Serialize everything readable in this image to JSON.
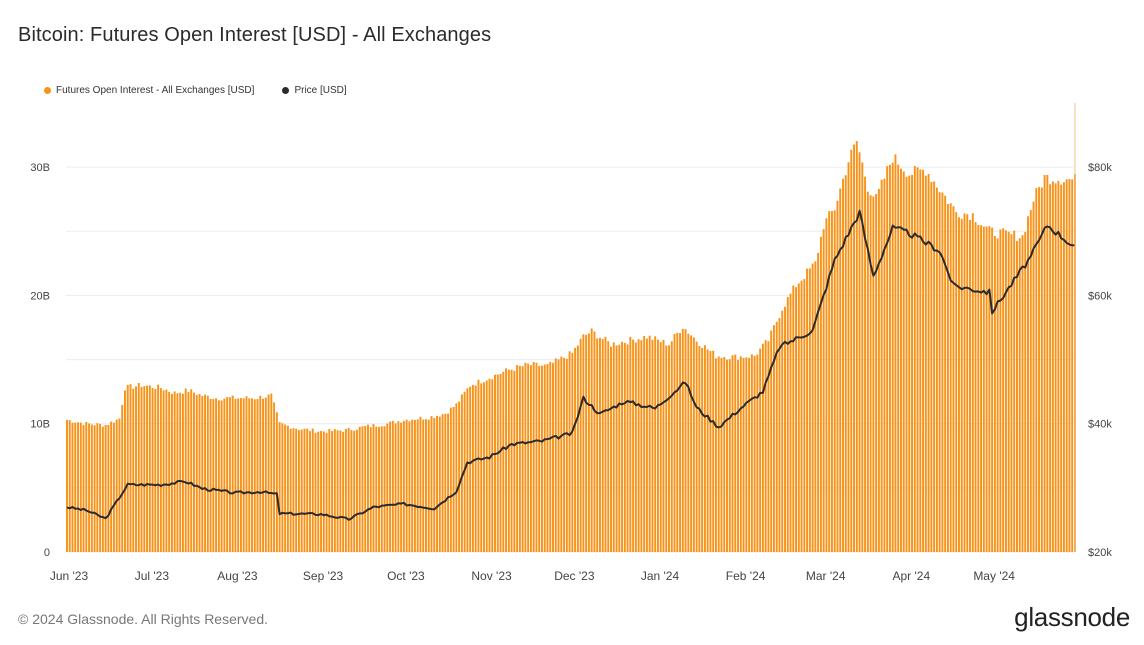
{
  "title": "Bitcoin: Futures Open Interest [USD] - All Exchanges",
  "footer": "© 2024 Glassnode. All Rights Reserved.",
  "brand": "glassnode",
  "colors": {
    "bar": "#f7931a",
    "price": "#2b2b2b",
    "grid": "#ececec",
    "axis": "#444444"
  },
  "chart_data": {
    "type": "bar",
    "x_range": [
      "2023-06-01",
      "2024-05-31"
    ],
    "x_ticks": [
      "Jun '23",
      "Jul '23",
      "Aug '23",
      "Sep '23",
      "Oct '23",
      "Nov '23",
      "Dec '23",
      "Jan '24",
      "Feb '24",
      "Mar '24",
      "Apr '24",
      "May '24"
    ],
    "y_left_range": [
      0,
      35000000000
    ],
    "y_left_ticks": [
      "0",
      "10B",
      "20B",
      "30B"
    ],
    "y_right_range": [
      20000,
      90000
    ],
    "y_right_ticks": [
      "$20k",
      "$40k",
      "$60k",
      "$80k"
    ],
    "grid": true,
    "legend_position": "top-left",
    "series": [
      {
        "name": "Futures Open Interest - All Exchanges [USD]",
        "type": "bar",
        "axis": "left",
        "unit": "USD (B)",
        "points": [
          [
            "2023-06-01",
            10.3
          ],
          [
            "2023-06-08",
            10.0
          ],
          [
            "2023-06-15",
            9.9
          ],
          [
            "2023-06-20",
            10.4
          ],
          [
            "2023-06-22",
            12.8
          ],
          [
            "2023-06-28",
            13.0
          ],
          [
            "2023-07-05",
            12.8
          ],
          [
            "2023-07-10",
            12.4
          ],
          [
            "2023-07-15",
            12.6
          ],
          [
            "2023-07-20",
            12.2
          ],
          [
            "2023-07-25",
            12.0
          ],
          [
            "2023-08-01",
            12.0
          ],
          [
            "2023-08-08",
            12.0
          ],
          [
            "2023-08-14",
            12.2
          ],
          [
            "2023-08-17",
            10.0
          ],
          [
            "2023-08-24",
            9.6
          ],
          [
            "2023-09-01",
            9.4
          ],
          [
            "2023-09-10",
            9.5
          ],
          [
            "2023-09-18",
            9.8
          ],
          [
            "2023-09-25",
            10.0
          ],
          [
            "2023-10-01",
            10.3
          ],
          [
            "2023-10-10",
            10.5
          ],
          [
            "2023-10-16",
            10.8
          ],
          [
            "2023-10-20",
            11.5
          ],
          [
            "2023-10-25",
            13.0
          ],
          [
            "2023-11-01",
            13.6
          ],
          [
            "2023-11-08",
            14.2
          ],
          [
            "2023-11-15",
            14.6
          ],
          [
            "2023-11-22",
            14.5
          ],
          [
            "2023-12-01",
            15.5
          ],
          [
            "2023-12-05",
            16.8
          ],
          [
            "2023-12-08",
            17.2
          ],
          [
            "2023-12-15",
            16.2
          ],
          [
            "2023-12-22",
            16.5
          ],
          [
            "2023-12-28",
            16.8
          ],
          [
            "2024-01-05",
            16.2
          ],
          [
            "2024-01-10",
            17.6
          ],
          [
            "2024-01-15",
            16.5
          ],
          [
            "2024-01-22",
            15.3
          ],
          [
            "2024-01-29",
            15.2
          ],
          [
            "2024-02-05",
            15.3
          ],
          [
            "2024-02-10",
            16.5
          ],
          [
            "2024-02-15",
            19.0
          ],
          [
            "2024-02-20",
            20.8
          ],
          [
            "2024-02-27",
            22.5
          ],
          [
            "2024-03-01",
            25.5
          ],
          [
            "2024-03-05",
            26.8
          ],
          [
            "2024-03-10",
            30.5
          ],
          [
            "2024-03-13",
            32.0
          ],
          [
            "2024-03-17",
            28.5
          ],
          [
            "2024-03-20",
            27.5
          ],
          [
            "2024-03-26",
            30.8
          ],
          [
            "2024-04-01",
            29.5
          ],
          [
            "2024-04-07",
            29.8
          ],
          [
            "2024-04-13",
            28.0
          ],
          [
            "2024-04-18",
            26.5
          ],
          [
            "2024-04-24",
            26.3
          ],
          [
            "2024-04-30",
            25.0
          ],
          [
            "2024-05-05",
            24.8
          ],
          [
            "2024-05-12",
            24.6
          ],
          [
            "2024-05-16",
            27.5
          ],
          [
            "2024-05-20",
            29.2
          ],
          [
            "2024-05-31",
            29.0
          ]
        ]
      },
      {
        "name": "Price [USD]",
        "type": "line",
        "axis": "right",
        "unit": "USD",
        "points": [
          [
            "2023-06-01",
            27000
          ],
          [
            "2023-06-08",
            26500
          ],
          [
            "2023-06-15",
            25200
          ],
          [
            "2023-06-20",
            28500
          ],
          [
            "2023-06-23",
            30500
          ],
          [
            "2023-07-05",
            30500
          ],
          [
            "2023-07-14",
            31000
          ],
          [
            "2023-07-20",
            29900
          ],
          [
            "2023-08-01",
            29200
          ],
          [
            "2023-08-10",
            29400
          ],
          [
            "2023-08-16",
            29000
          ],
          [
            "2023-08-17",
            26000
          ],
          [
            "2023-09-01",
            25900
          ],
          [
            "2023-09-11",
            25100
          ],
          [
            "2023-09-20",
            27000
          ],
          [
            "2023-10-01",
            27500
          ],
          [
            "2023-10-12",
            26800
          ],
          [
            "2023-10-20",
            29500
          ],
          [
            "2023-10-24",
            34000
          ],
          [
            "2023-11-01",
            34800
          ],
          [
            "2023-11-09",
            36800
          ],
          [
            "2023-11-20",
            37300
          ],
          [
            "2023-12-01",
            38500
          ],
          [
            "2023-12-05",
            44000
          ],
          [
            "2023-12-11",
            41500
          ],
          [
            "2023-12-20",
            43500
          ],
          [
            "2023-12-31",
            42400
          ],
          [
            "2024-01-11",
            46500
          ],
          [
            "2024-01-15",
            42500
          ],
          [
            "2024-01-23",
            39500
          ],
          [
            "2024-02-01",
            42800
          ],
          [
            "2024-02-08",
            45000
          ],
          [
            "2024-02-14",
            52000
          ],
          [
            "2024-02-26",
            54500
          ],
          [
            "2024-03-05",
            65500
          ],
          [
            "2024-03-14",
            73000
          ],
          [
            "2024-03-19",
            63000
          ],
          [
            "2024-03-26",
            70500
          ],
          [
            "2024-04-01",
            69700
          ],
          [
            "2024-04-12",
            67000
          ],
          [
            "2024-04-17",
            61500
          ],
          [
            "2024-04-30",
            60500
          ],
          [
            "2024-05-01",
            57500
          ],
          [
            "2024-05-15",
            66000
          ],
          [
            "2024-05-21",
            71000
          ],
          [
            "2024-05-31",
            67500
          ]
        ]
      }
    ]
  }
}
